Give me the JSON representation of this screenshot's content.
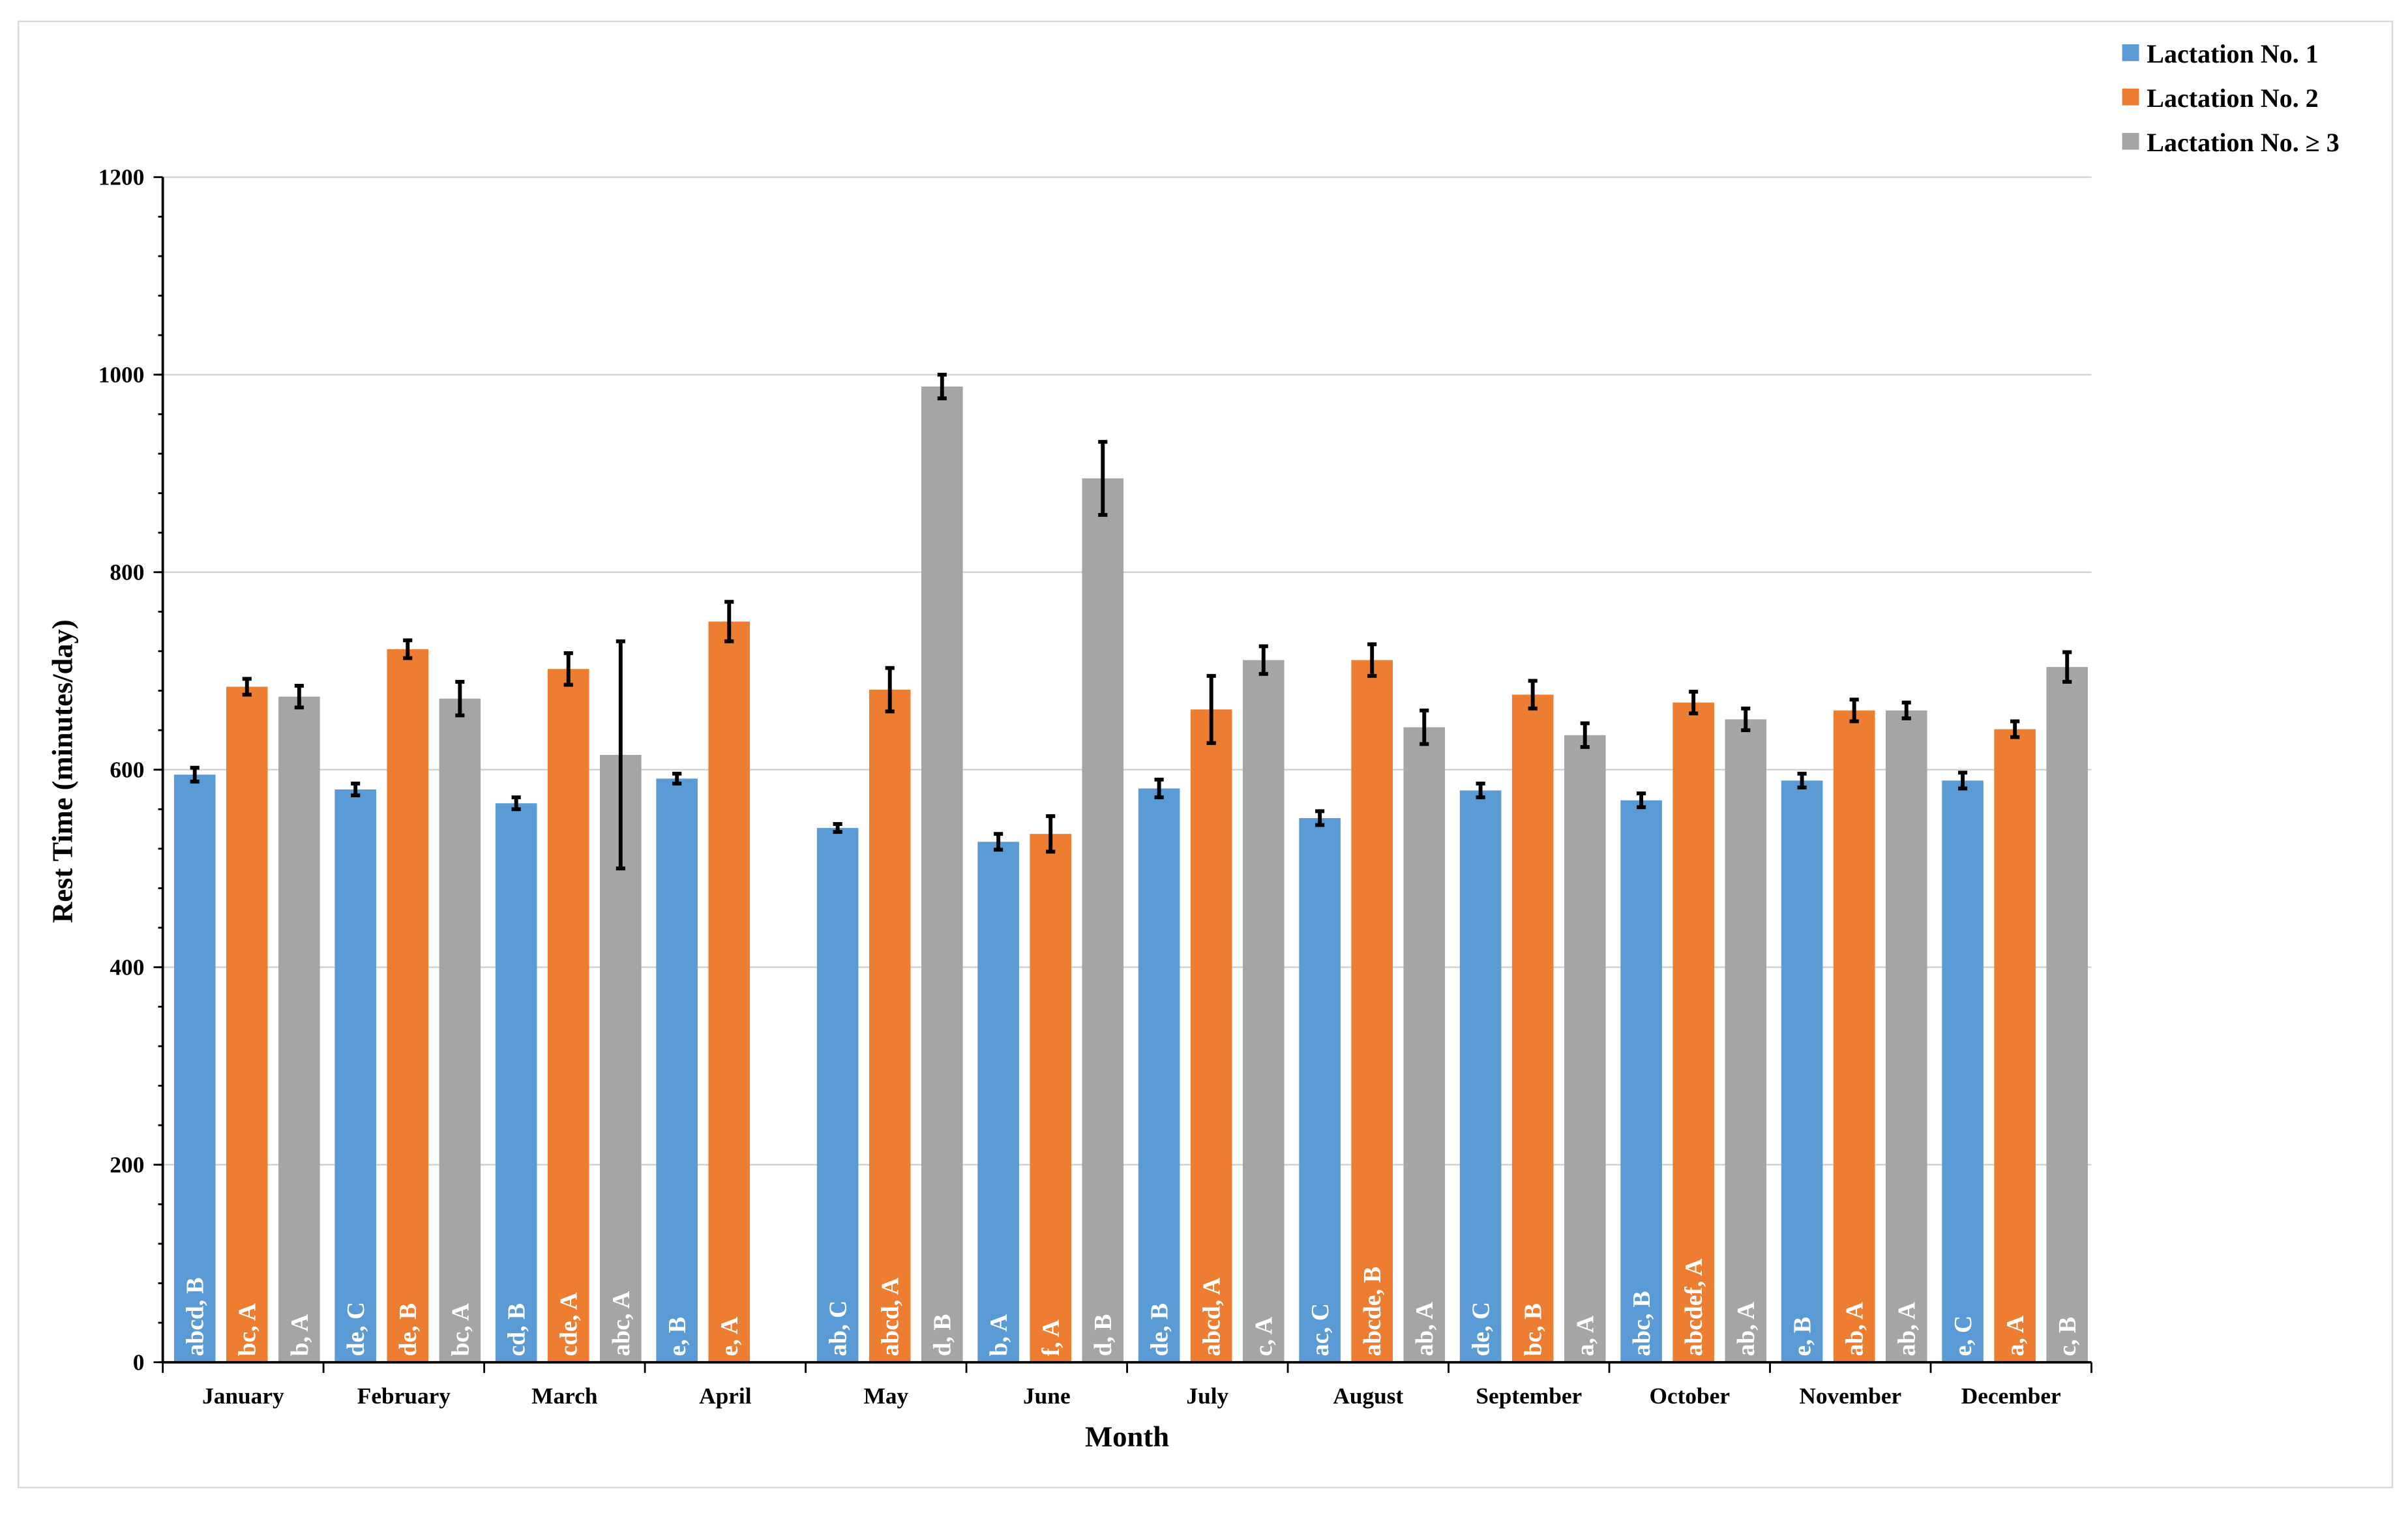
{
  "chart_data": {
    "type": "bar",
    "title": "",
    "xlabel": "Month",
    "ylabel": "Rest Time (minutes/day)",
    "ylim": [
      0,
      1200
    ],
    "yticks": [
      "0",
      "200",
      "400",
      "600",
      "800",
      "1000",
      "1200"
    ],
    "grid": true,
    "legend_position": "top-right",
    "categories": [
      "January",
      "February",
      "March",
      "April",
      "May",
      "June",
      "July",
      "August",
      "September",
      "October",
      "November",
      "December"
    ],
    "series": [
      {
        "name": "Lactation No. 1",
        "color": "#5b9bd5",
        "values": [
          595,
          580,
          566,
          591,
          541,
          527,
          581,
          551,
          579,
          569,
          589,
          589
        ],
        "errors": [
          7,
          6,
          6,
          5,
          4,
          8,
          9,
          7,
          7,
          7,
          7,
          8
        ],
        "labels": [
          "abcd, B",
          "de, C",
          "cd, B",
          "e, B",
          "ab, C",
          "b, A",
          "de, B",
          "ac, C",
          "de, C",
          "abc, B",
          "e, B",
          "e, C"
        ]
      },
      {
        "name": "Lactation No. 2",
        "color": "#ed7d31",
        "values": [
          684,
          722,
          702,
          750,
          681,
          535,
          661,
          711,
          676,
          668,
          660,
          641
        ],
        "errors": [
          8,
          9,
          16,
          20,
          22,
          18,
          34,
          16,
          14,
          11,
          11,
          8
        ],
        "labels": [
          "bc, A",
          "de, B",
          "cde, A",
          "e, A",
          "abcd, A",
          "f, A",
          "abcd, A",
          "abcde, B",
          "bc, B",
          "abcdef, A",
          "ab, A",
          "a, A"
        ]
      },
      {
        "name": "Lactation No. ≥ 3",
        "color": "#a5a5a5",
        "values": [
          674,
          672,
          615,
          null,
          988,
          895,
          711,
          643,
          635,
          651,
          660,
          704
        ],
        "errors": [
          11,
          17,
          115,
          null,
          12,
          37,
          14,
          17,
          12,
          11,
          8,
          15
        ],
        "labels": [
          "b, A",
          "bc, A",
          "abc, A",
          "",
          "d, B",
          "d, B",
          "c, A",
          "ab, A",
          "a, A",
          "ab, A",
          "ab, A",
          "c, B"
        ]
      }
    ]
  }
}
